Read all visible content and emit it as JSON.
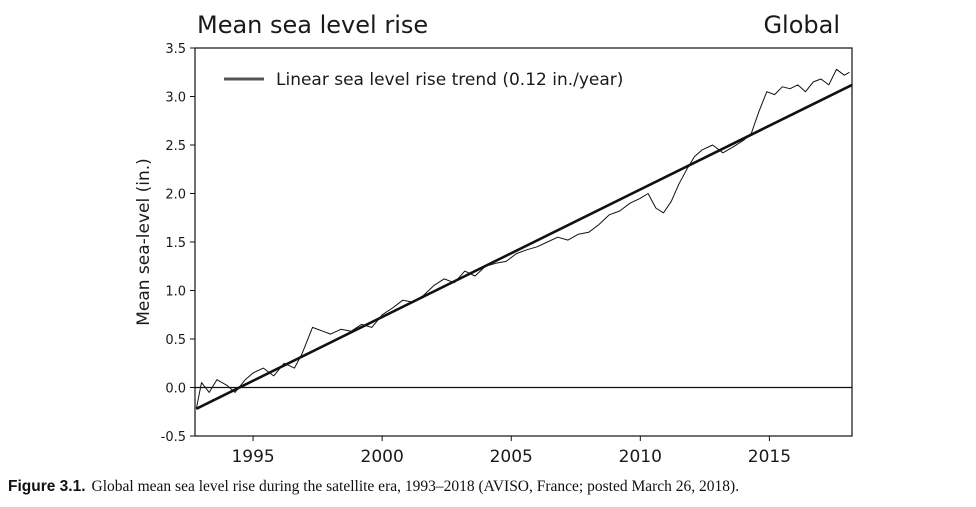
{
  "chart_data": {
    "type": "line",
    "title": "Mean sea level rise",
    "region": "Global",
    "ylabel": "Mean sea-level (in.)",
    "xlabel": "",
    "xlim": [
      1992.75,
      2018.2
    ],
    "ylim": [
      -0.5,
      3.5
    ],
    "x_ticks": [
      1995,
      2000,
      2005,
      2010,
      2015
    ],
    "x_tick_labels": [
      "1995",
      "2000",
      "2005",
      "2010",
      "2015"
    ],
    "y_ticks": [
      -0.5,
      0.0,
      0.5,
      1.0,
      1.5,
      2.0,
      2.5,
      3.0,
      3.5
    ],
    "y_tick_labels": [
      "-0.5",
      "0.0",
      "0.5",
      "1.0",
      "1.5",
      "2.0",
      "2.5",
      "3.0",
      "3.5"
    ],
    "grid": false,
    "zero_line": true,
    "legend_position": "top-left",
    "series": [
      {
        "kind": "observed",
        "x": [
          1992.8,
          1993.0,
          1993.3,
          1993.6,
          1994.0,
          1994.3,
          1994.7,
          1995.0,
          1995.4,
          1995.8,
          1996.2,
          1996.6,
          1996.9,
          1997.3,
          1997.7,
          1998.0,
          1998.4,
          1998.8,
          1999.2,
          1999.6,
          2000.0,
          2000.4,
          2000.8,
          2001.2,
          2001.6,
          2002.0,
          2002.4,
          2002.8,
          2003.2,
          2003.6,
          2004.0,
          2004.4,
          2004.8,
          2005.2,
          2005.6,
          2006.0,
          2006.4,
          2006.8,
          2007.2,
          2007.6,
          2008.0,
          2008.4,
          2008.8,
          2009.2,
          2009.6,
          2010.0,
          2010.3,
          2010.6,
          2010.9,
          2011.2,
          2011.5,
          2011.8,
          2012.1,
          2012.4,
          2012.8,
          2013.2,
          2013.6,
          2014.0,
          2014.3,
          2014.6,
          2014.9,
          2015.2,
          2015.5,
          2015.8,
          2016.1,
          2016.4,
          2016.7,
          2017.0,
          2017.3,
          2017.6,
          2017.9,
          2018.1
        ],
        "y": [
          -0.22,
          0.05,
          -0.05,
          0.08,
          0.02,
          -0.05,
          0.08,
          0.15,
          0.2,
          0.12,
          0.25,
          0.2,
          0.35,
          0.62,
          0.58,
          0.55,
          0.6,
          0.58,
          0.65,
          0.62,
          0.75,
          0.82,
          0.9,
          0.88,
          0.95,
          1.05,
          1.12,
          1.08,
          1.2,
          1.15,
          1.25,
          1.28,
          1.3,
          1.38,
          1.42,
          1.45,
          1.5,
          1.55,
          1.52,
          1.58,
          1.6,
          1.68,
          1.78,
          1.82,
          1.9,
          1.95,
          2.0,
          1.85,
          1.8,
          1.92,
          2.1,
          2.25,
          2.38,
          2.45,
          2.5,
          2.42,
          2.48,
          2.55,
          2.62,
          2.85,
          3.05,
          3.02,
          3.1,
          3.08,
          3.12,
          3.05,
          3.15,
          3.18,
          3.12,
          3.28,
          3.22,
          3.25
        ]
      },
      {
        "name": "Linear sea level rise trend (0.12 in./year)",
        "kind": "trend",
        "x": [
          1992.8,
          2018.2
        ],
        "y": [
          -0.22,
          3.12
        ]
      }
    ],
    "colors": {
      "observed": "#111111",
      "trend": "#111111",
      "zero_line": "#111111",
      "legend_swatch": "#555555"
    }
  },
  "caption": {
    "label": "Figure 3.1.",
    "text": "Global mean sea level rise during the satellite era, 1993–2018 (AVISO, France; posted March 26, 2018)."
  }
}
